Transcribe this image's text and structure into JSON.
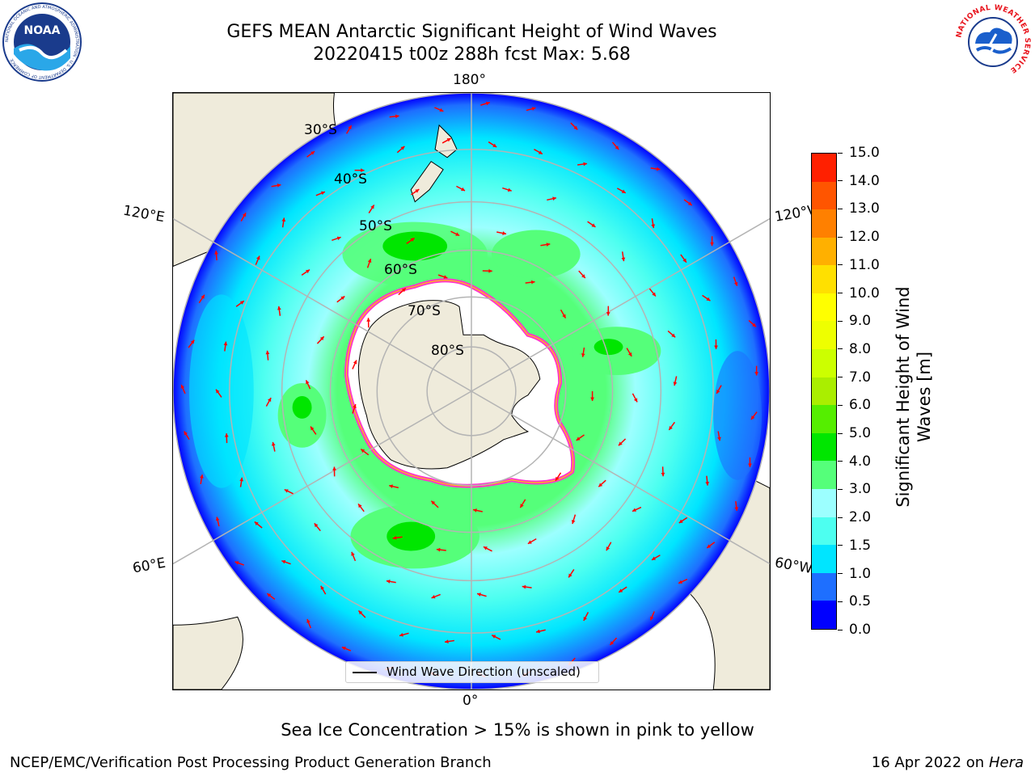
{
  "title": {
    "line1": "GEFS MEAN Antarctic Significant Height of Wind Waves",
    "line2": "20220415 t00z 288h fcst   Max: 5.68"
  },
  "map": {
    "lon_labels": {
      "top": "180°",
      "bottom": "0°",
      "left_upper": "120°E",
      "left_lower": "60°E",
      "right_upper": "120°W",
      "right_lower": "60°W"
    },
    "lat_labels": [
      "30°S",
      "40°S",
      "50°S",
      "60°S",
      "70°S",
      "80°S"
    ],
    "legend": "Wind Wave Direction (unscaled)",
    "colors": {
      "land": "#efebdb",
      "ice": "#ffffff",
      "ice_edge": "#ff33cc",
      "grid": "#b4b4b4",
      "arrow": "#ff0000"
    }
  },
  "colorbar": {
    "label_line1": "Significant Height of Wind",
    "label_line2": "Waves [m]",
    "ticks": [
      "0.0",
      "0.5",
      "1.0",
      "1.5",
      "2.0",
      "3.0",
      "4.0",
      "5.0",
      "6.0",
      "7.0",
      "8.0",
      "9.0",
      "10.0",
      "11.0",
      "12.0",
      "13.0",
      "14.0",
      "15.0"
    ],
    "colors": [
      "#0000ff",
      "#1e6fff",
      "#00e5ff",
      "#4dfff0",
      "#9cffff",
      "#55ff7a",
      "#00e600",
      "#55ee00",
      "#aaee00",
      "#ccff00",
      "#eeff00",
      "#ffff00",
      "#ffe000",
      "#ffb000",
      "#ff8000",
      "#ff5500",
      "#ff2000"
    ]
  },
  "footer": {
    "note": "Sea Ice Concentration > 15% is shown in pink to yellow",
    "credit": "NCEP/EMC/Verification Post Processing Product Generation Branch",
    "date": "16 Apr 2022 on ",
    "machine": "Hera"
  },
  "logos": {
    "noaa": "NOAA",
    "noaa_ring": "NATIONAL OCEANIC AND ATMOSPHERIC ADMINISTRATION · U.S. DEPARTMENT OF COMMERCE",
    "nws_ring": "NATIONAL WEATHER SERVICE"
  }
}
